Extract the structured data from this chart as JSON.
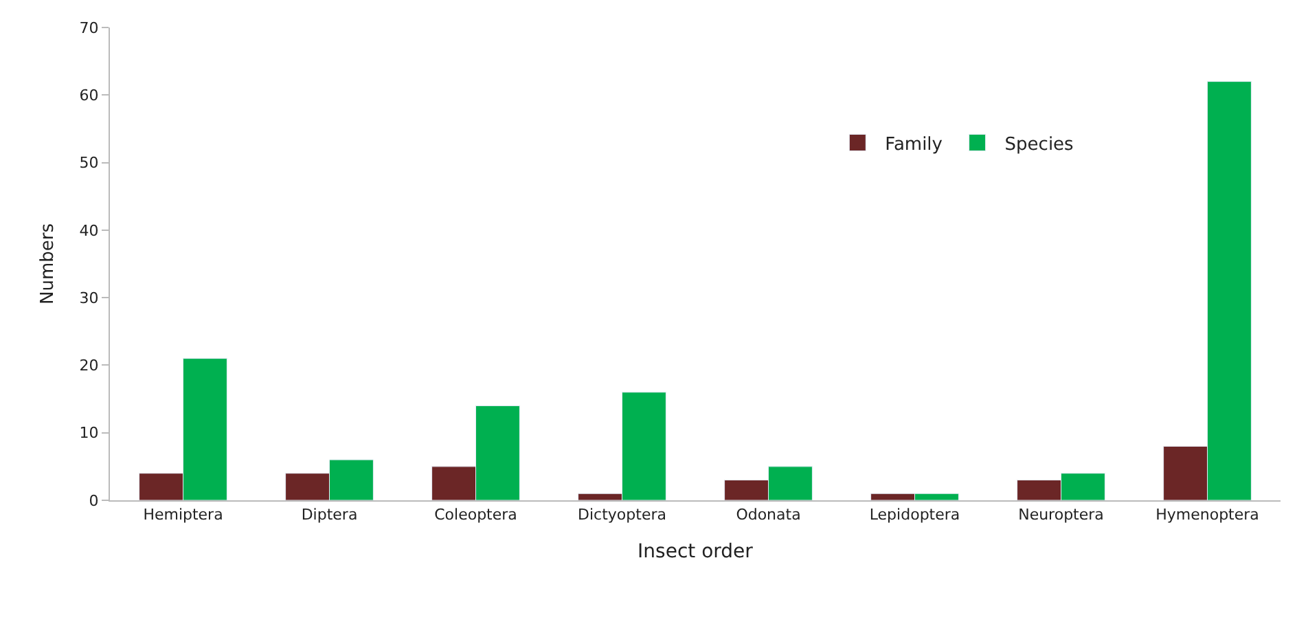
{
  "chart_data": {
    "type": "bar",
    "xlabel": "Insect order",
    "ylabel": "Numbers",
    "categories": [
      "Hemiptera",
      "Diptera",
      "Coleoptera",
      "Dictyoptera",
      "Odonata",
      "Lepidoptera",
      "Neuroptera",
      "Hymenoptera"
    ],
    "series": [
      {
        "name": "Family",
        "color": "#6b2626",
        "values": [
          4,
          4,
          5,
          1,
          3,
          1,
          3,
          8
        ]
      },
      {
        "name": "Species",
        "color": "#00b050",
        "values": [
          21,
          6,
          14,
          16,
          5,
          1,
          4,
          62
        ]
      }
    ],
    "ylim": [
      0,
      70
    ],
    "yticks": [
      0,
      10,
      20,
      30,
      40,
      50,
      60,
      70
    ],
    "legend": "top right"
  }
}
